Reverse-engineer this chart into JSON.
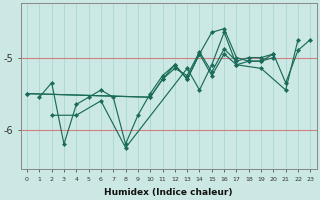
{
  "xlabel": "Humidex (Indice chaleur)",
  "bg_color": "#cce8e4",
  "line_color": "#1a6b5a",
  "grid_color_h": "#d08080",
  "grid_color_v": "#a8d8d4",
  "xlim": [
    -0.5,
    23.5
  ],
  "ylim": [
    -6.55,
    -4.25
  ],
  "yticks": [
    -6,
    -5
  ],
  "xticks": [
    0,
    1,
    2,
    3,
    4,
    5,
    6,
    7,
    8,
    9,
    10,
    11,
    12,
    13,
    14,
    15,
    16,
    17,
    18,
    19,
    20,
    21,
    22,
    23
  ],
  "series": [
    {
      "x": [
        1,
        2,
        3,
        4,
        5,
        6,
        7,
        8,
        9,
        10,
        11,
        12,
        13,
        14,
        15,
        16,
        17,
        18,
        19,
        20,
        21,
        22,
        23
      ],
      "y": [
        -5.55,
        -5.35,
        -6.2,
        -5.65,
        -5.55,
        -5.45,
        -5.55,
        -6.2,
        -5.8,
        -5.5,
        -5.25,
        -5.1,
        -5.3,
        -4.95,
        -4.65,
        -4.6,
        -5.0,
        -5.05,
        -5.05,
        -4.95,
        -5.35,
        -4.9,
        -4.75
      ]
    },
    {
      "x": [
        2,
        4,
        6,
        8,
        13,
        14,
        15,
        16,
        17,
        19,
        21,
        22
      ],
      "y": [
        -5.8,
        -5.8,
        -5.6,
        -6.25,
        -5.15,
        -5.45,
        -5.1,
        -4.65,
        -5.1,
        -5.15,
        -5.45,
        -4.75
      ]
    },
    {
      "x": [
        0,
        10,
        11,
        12,
        13,
        14,
        15,
        16,
        17,
        18,
        19,
        20
      ],
      "y": [
        -5.5,
        -5.55,
        -5.3,
        -5.1,
        -5.3,
        -4.95,
        -5.25,
        -4.95,
        -5.1,
        -5.05,
        -5.05,
        -5.0
      ]
    },
    {
      "x": [
        0,
        10,
        11,
        12,
        13,
        14,
        15,
        16,
        17,
        18,
        19,
        20
      ],
      "y": [
        -5.5,
        -5.55,
        -5.3,
        -5.15,
        -5.25,
        -4.92,
        -5.2,
        -4.88,
        -5.05,
        -5.0,
        -5.0,
        -4.95
      ]
    }
  ],
  "marker": "D",
  "markersize": 2.2,
  "linewidth": 0.85
}
